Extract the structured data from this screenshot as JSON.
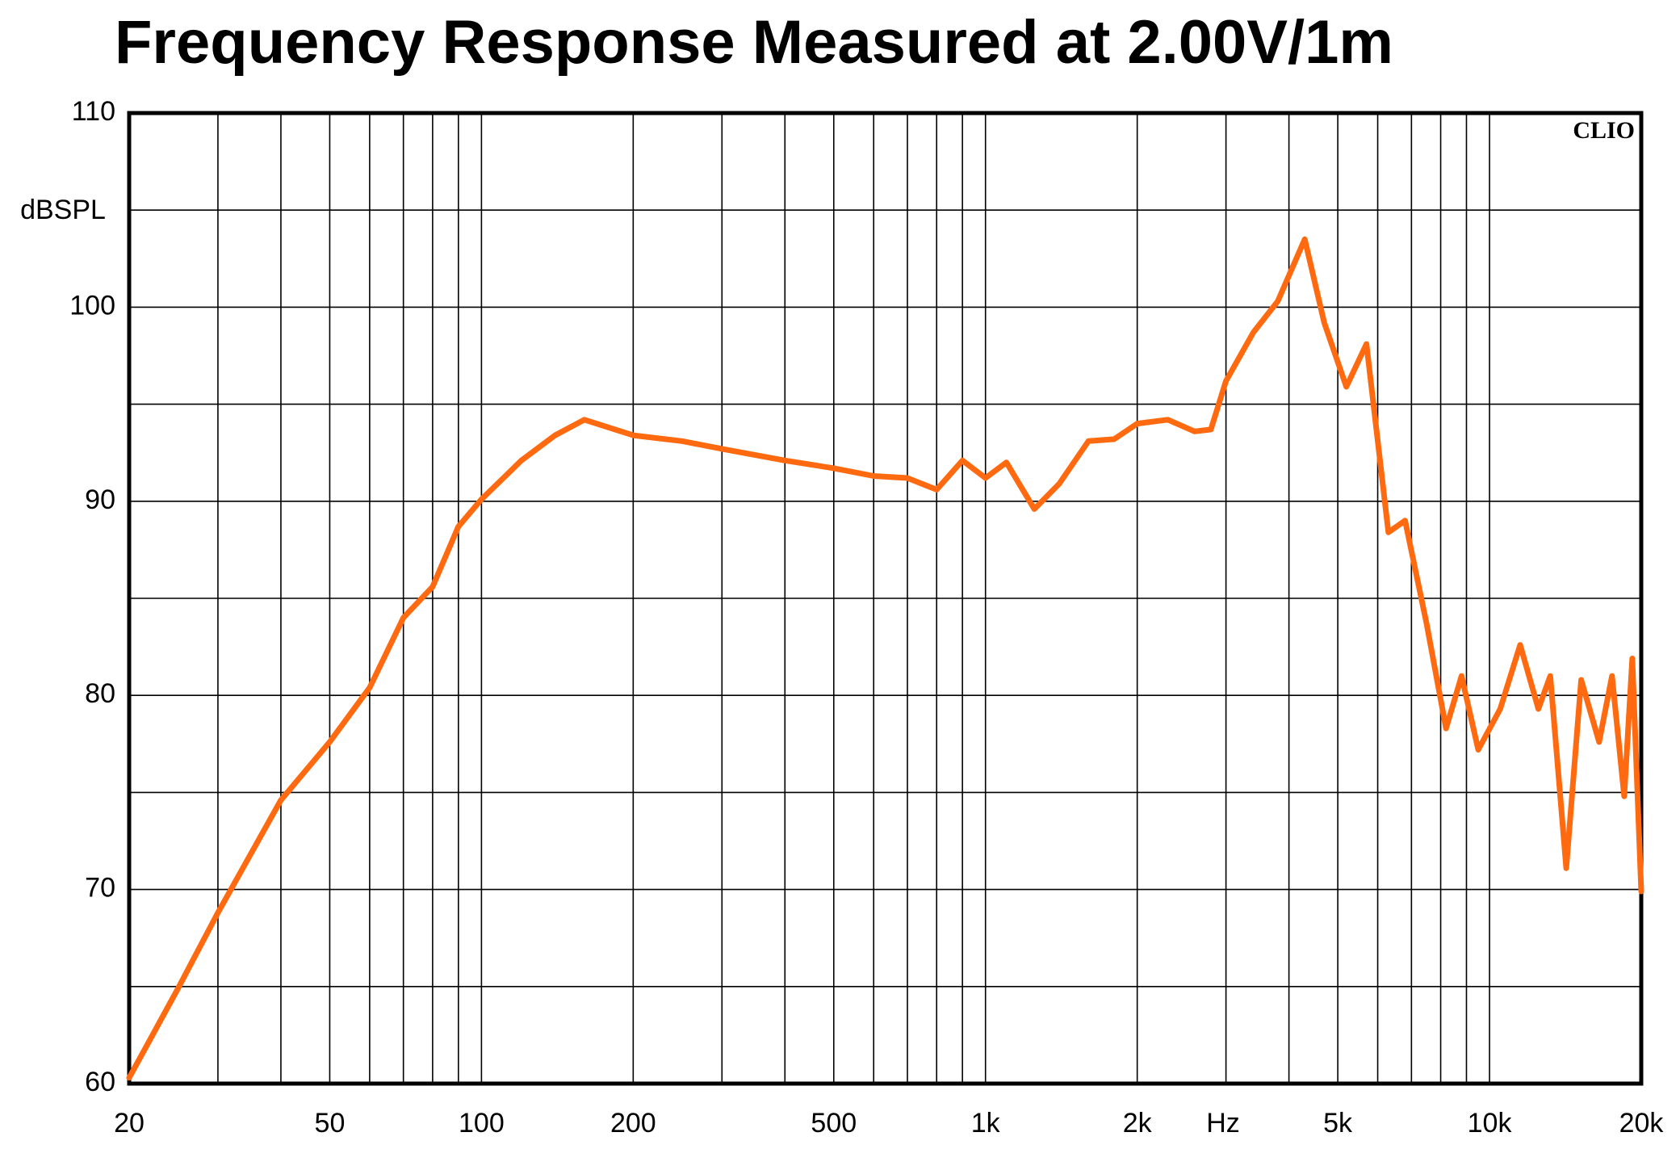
{
  "chart_data": {
    "type": "line",
    "title": "Frequency Response Measured at 2.00V/1m",
    "y_label": "dBSPL",
    "x_unit_label": "Hz",
    "annotation": "CLIO",
    "x": [
      20,
      25,
      30,
      40,
      50,
      60,
      70,
      80,
      90,
      100,
      120,
      140,
      160,
      200,
      250,
      300,
      400,
      500,
      600,
      700,
      800,
      900,
      1000,
      1100,
      1250,
      1400,
      1600,
      1800,
      2000,
      2300,
      2600,
      2800,
      3000,
      3400,
      3800,
      4300,
      4700,
      5200,
      5700,
      6300,
      6800,
      7500,
      8200,
      8800,
      9500,
      10500,
      11500,
      12500,
      13200,
      14200,
      15200,
      16500,
      17500,
      18500,
      19200,
      20000
    ],
    "series": [
      {
        "name": "Frequency Response",
        "color": "#ff6a10",
        "values": [
          60.3,
          64.9,
          68.8,
          74.6,
          77.6,
          80.4,
          84,
          85.6,
          88.7,
          90.1,
          92.1,
          93.4,
          94.2,
          93.4,
          93.1,
          92.7,
          92.1,
          91.7,
          91.3,
          91.2,
          90.6,
          92.1,
          91.2,
          92.0,
          89.6,
          90.9,
          93.1,
          93.2,
          94,
          94.2,
          93.6,
          93.7,
          96.2,
          98.7,
          100.3,
          103.5,
          99.2,
          95.9,
          98.1,
          88.4,
          89,
          83.7,
          78.3,
          81,
          77.2,
          79.3,
          82.6,
          79.3,
          81,
          71.1,
          80.8,
          77.6,
          81,
          74.8,
          81.9,
          69.9
        ]
      }
    ],
    "xscale": "log",
    "xlim": [
      20,
      20000
    ],
    "xticks": [
      20,
      50,
      100,
      200,
      500,
      {
        "value": 1000,
        "label": "1k"
      },
      {
        "value": 2000,
        "label": "2k"
      },
      {
        "value": 5000,
        "label": "5k"
      },
      {
        "value": 10000,
        "label": "10k"
      },
      {
        "value": 20000,
        "label": "20k"
      }
    ],
    "xminor_ticks": [
      30,
      40,
      60,
      70,
      80,
      90,
      300,
      400,
      600,
      700,
      800,
      900,
      3000,
      4000,
      6000,
      7000,
      8000,
      9000
    ],
    "ylim": [
      60,
      110
    ],
    "yticks": [
      60,
      70,
      80,
      90,
      100,
      110
    ],
    "yminor_ticks": [
      65,
      75,
      85,
      95,
      105
    ],
    "grid": true
  }
}
